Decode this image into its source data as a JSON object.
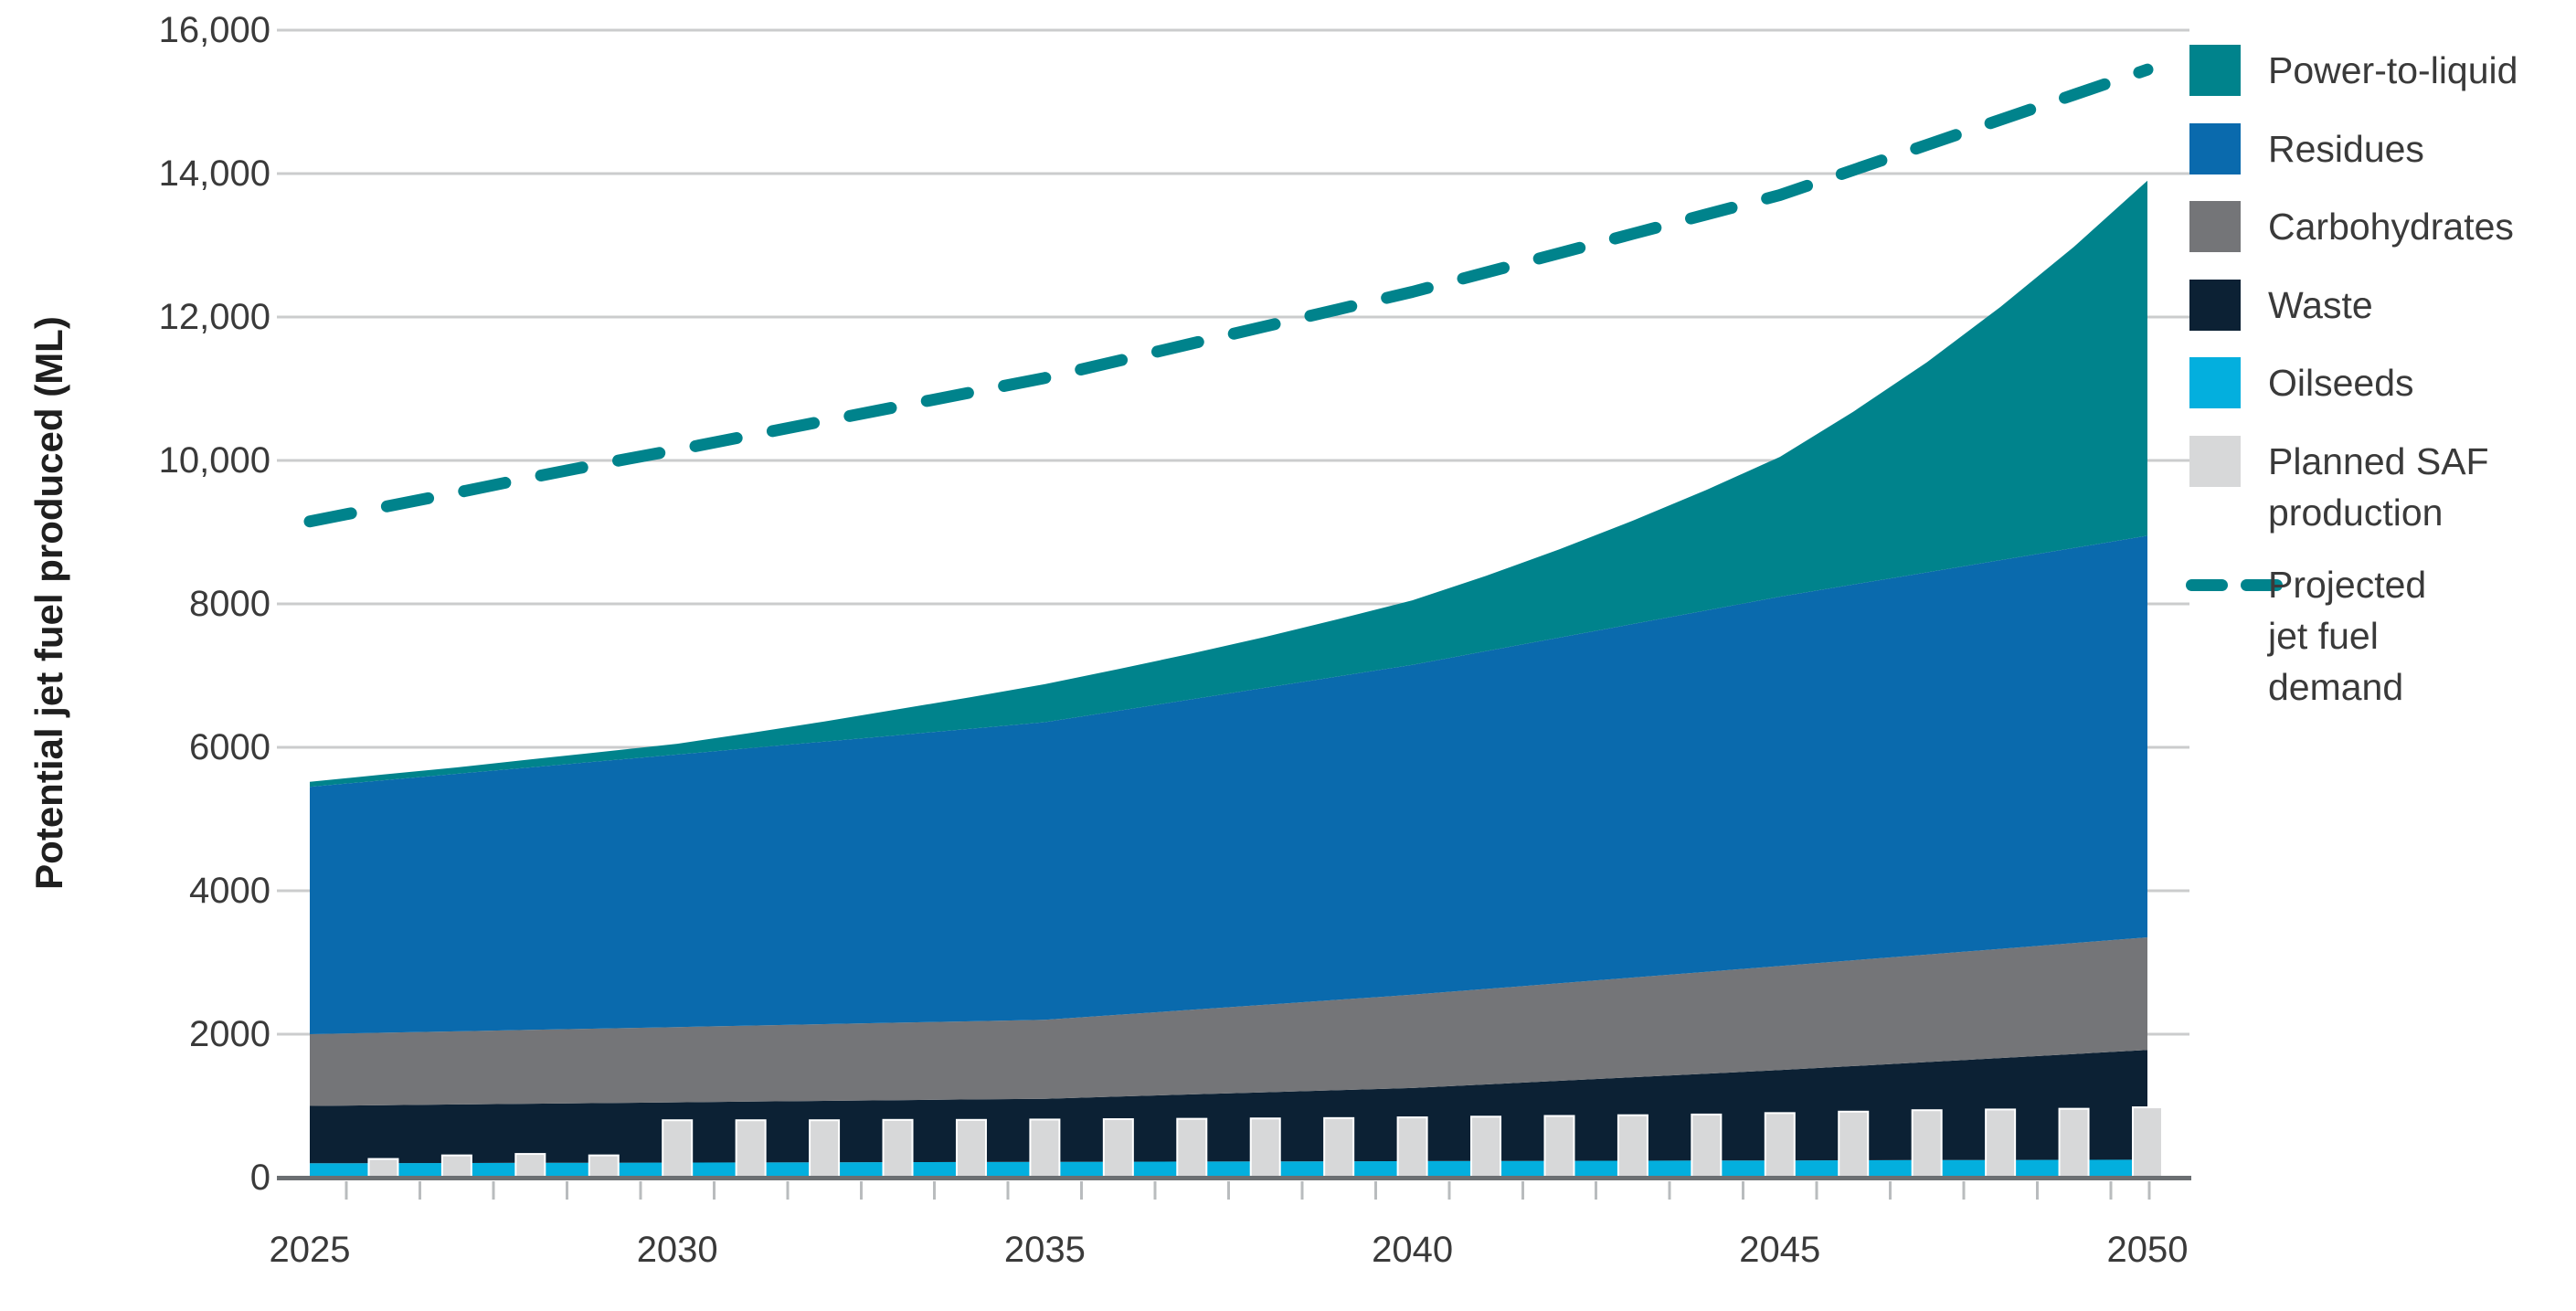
{
  "title": "",
  "colors": {
    "background": "#FFFFFF",
    "grid_line": "#CBCCCD",
    "axis_line": "#6B6F72",
    "minor_tick": "#B9BCBE",
    "tick_text": "#3A3A3A",
    "axis_title_text": "#1F1F1F"
  },
  "chart_data": {
    "type": "area",
    "subtype": "stacked-area with bar overlay and dashed projection line",
    "title": "",
    "xlabel": "",
    "ylabel": "Potential jet fuel produced (ML)",
    "xlim": [
      2025,
      2050
    ],
    "ylim": [
      0,
      16000
    ],
    "grid": "horizontal",
    "legend_position": "right",
    "x_tick_labels": [
      "2025",
      "2030",
      "2035",
      "2040",
      "2045",
      "2050"
    ],
    "x_tick_values": [
      2025,
      2030,
      2035,
      2040,
      2045,
      2050
    ],
    "y_tick_values": [
      0,
      2000,
      4000,
      6000,
      8000,
      10000,
      12000,
      14000,
      16000
    ],
    "y_tick_labels": [
      "0",
      "2000",
      "4000",
      "6000",
      "8000",
      "10,000",
      "12,000",
      "14,000",
      "16,000"
    ],
    "years": [
      2025,
      2026,
      2027,
      2028,
      2029,
      2030,
      2031,
      2032,
      2033,
      2034,
      2035,
      2036,
      2037,
      2038,
      2039,
      2040,
      2041,
      2042,
      2043,
      2044,
      2045,
      2046,
      2047,
      2048,
      2049,
      2050
    ],
    "stacked_series_bottom_to_top": [
      {
        "name": "Oilseeds",
        "color": "#03AFDE",
        "values": [
          200,
          202,
          204,
          206,
          208,
          210,
          212,
          214,
          216,
          218,
          220,
          222,
          224,
          226,
          228,
          230,
          232,
          234,
          236,
          238,
          240,
          242,
          244,
          246,
          248,
          250
        ]
      },
      {
        "name": "Waste",
        "color": "#0C2134",
        "values": [
          800,
          808,
          816,
          824,
          832,
          840,
          848,
          856,
          864,
          872,
          880,
          908,
          936,
          964,
          992,
          1020,
          1068,
          1116,
          1164,
          1212,
          1260,
          1314,
          1368,
          1422,
          1476,
          1530
        ]
      },
      {
        "name": "Carbohydrates",
        "color": "#747578",
        "values": [
          1000,
          1010,
          1020,
          1030,
          1040,
          1050,
          1060,
          1070,
          1080,
          1090,
          1100,
          1140,
          1180,
          1220,
          1260,
          1300,
          1330,
          1360,
          1390,
          1420,
          1450,
          1474,
          1498,
          1522,
          1546,
          1570
        ]
      },
      {
        "name": "Residues",
        "color": "#0A6AAD",
        "values": [
          3450,
          3520,
          3590,
          3660,
          3730,
          3800,
          3870,
          3940,
          4010,
          4080,
          4150,
          4240,
          4330,
          4420,
          4510,
          4600,
          4710,
          4820,
          4930,
          5040,
          5150,
          5240,
          5330,
          5420,
          5510,
          5600
        ]
      },
      {
        "name": "Power-to-liquid",
        "color": "#00838C",
        "values": [
          70,
          80,
          90,
          110,
          130,
          150,
          210,
          280,
          360,
          440,
          530,
          580,
          640,
          710,
          800,
          900,
          1050,
          1230,
          1440,
          1680,
          1950,
          2410,
          2930,
          3530,
          4200,
          4950
        ]
      }
    ],
    "bar_series": {
      "name": "Planned SAF production",
      "color": "#D7D8D9",
      "values": [
        0,
        260,
        310,
        330,
        310,
        800,
        800,
        800,
        805,
        805,
        810,
        815,
        820,
        825,
        830,
        840,
        850,
        860,
        870,
        880,
        900,
        920,
        940,
        950,
        960,
        980
      ]
    },
    "line_series": {
      "name": "Projected jet fuel demand",
      "color": "#00838C",
      "style": "dashed",
      "values": [
        9150,
        9350,
        9550,
        9760,
        9960,
        10150,
        10350,
        10550,
        10750,
        10950,
        11150,
        11390,
        11630,
        11870,
        12110,
        12350,
        12620,
        12890,
        13160,
        13430,
        13700,
        14050,
        14400,
        14750,
        15100,
        15450
      ]
    }
  },
  "legend": {
    "items": [
      {
        "label": "Power-to-liquid",
        "color": "#00838C",
        "marker": "square"
      },
      {
        "label": "Residues",
        "color": "#0A6AAD",
        "marker": "square"
      },
      {
        "label": "Carbohydrates",
        "color": "#747578",
        "marker": "square"
      },
      {
        "label": "Waste",
        "color": "#0C2134",
        "marker": "square"
      },
      {
        "label": "Oilseeds",
        "color": "#03AFDE",
        "marker": "square"
      },
      {
        "label": "Planned SAF\nproduction",
        "color": "#D7D8D9",
        "marker": "square"
      },
      {
        "label": "Projected\njet fuel\ndemand",
        "color": "#00838C",
        "marker": "dash"
      }
    ]
  }
}
